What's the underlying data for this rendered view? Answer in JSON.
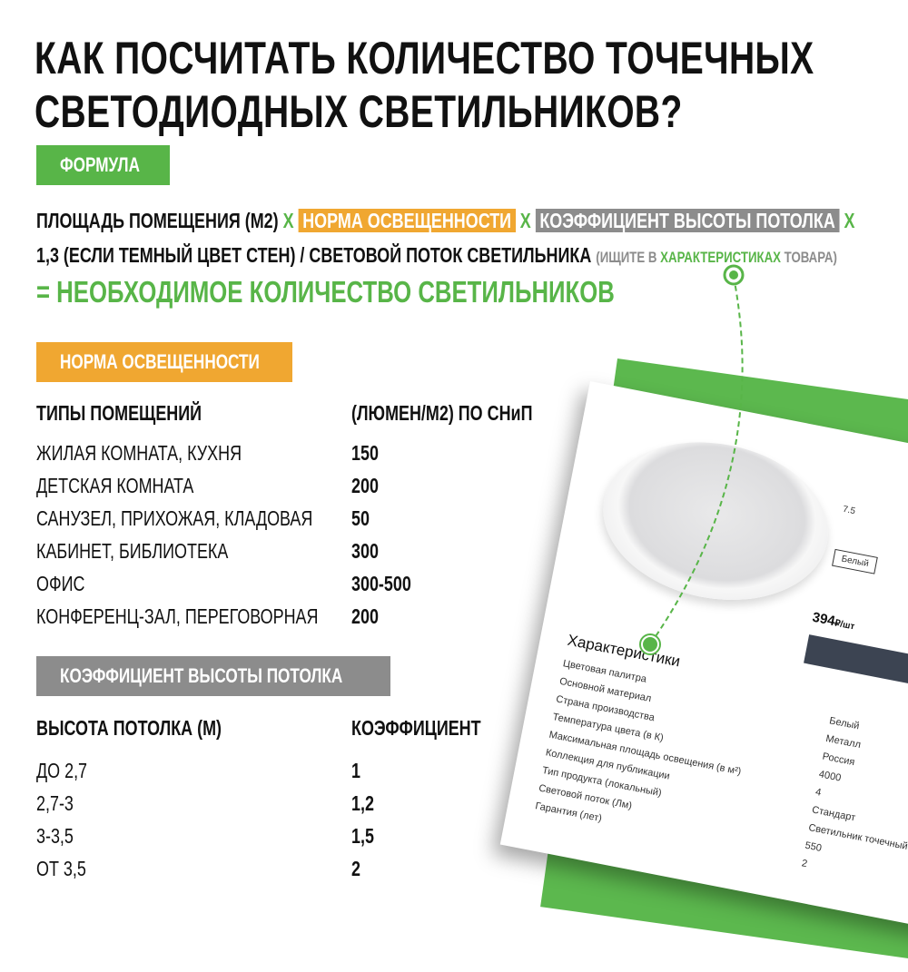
{
  "title": {
    "line1": "КАК ПОСЧИТАТЬ КОЛИЧЕСТВО ТОЧЕЧНЫХ",
    "line2": "СВЕТОДИОДНЫХ СВЕТИЛЬНИКОВ?"
  },
  "colors": {
    "green": "#58b548",
    "orange": "#f0a731",
    "gray": "#8c8c8c"
  },
  "formula": {
    "badge": "ФОРМУЛА",
    "part1": "ПЛОЩАДЬ ПОМЕЩЕНИЯ (М2)",
    "x": "X",
    "part2": "НОРМА ОСВЕЩЕННОСТИ",
    "part3": "КОЭФФИЦИЕНТ ВЫСОТЫ ПОТОЛКА",
    "part4": "1,3 (ЕСЛИ ТЕМНЫЙ ЦВЕТ СТЕН) / СВЕТОВОЙ ПОТОК СВЕТИЛЬНИКА",
    "hint_a": "(ИЩИТЕ В",
    "hint_b": "ХАРАКТЕРИСТИКАХ",
    "hint_c": "ТОВАРА)",
    "result": "= НЕОБХОДИМОЕ КОЛИЧЕСТВО СВЕТИЛЬНИКОВ"
  },
  "norm": {
    "badge": "НОРМА ОСВЕЩЕННОСТИ",
    "headers": [
      "ТИПЫ ПОМЕЩЕНИЙ",
      "(ЛЮМЕН/М2) ПО СНиП"
    ],
    "rows": [
      [
        "ЖИЛАЯ КОМНАТА, КУХНЯ",
        "150"
      ],
      [
        "ДЕТСКАЯ КОМНАТА",
        "200"
      ],
      [
        "САНУЗЕЛ, ПРИХОЖАЯ, КЛАДОВАЯ",
        "50"
      ],
      [
        "КАБИНЕТ, БИБЛИОТЕКА",
        "300"
      ],
      [
        "ОФИС",
        "300-500"
      ],
      [
        "КОНФЕРЕНЦ-ЗАЛ, ПЕРЕГОВОРНАЯ",
        "200"
      ]
    ]
  },
  "coef": {
    "badge": "КОЭФФИЦИЕНТ ВЫСОТЫ ПОТОЛКА",
    "headers": [
      "ВЫСОТА ПОТОЛКА (М)",
      "КОЭФФИЦИЕНТ"
    ],
    "rows": [
      [
        "ДО 2,7",
        "1"
      ],
      [
        "2,7-3",
        "1,2"
      ],
      [
        "3-3,5",
        "1,5"
      ],
      [
        "ОТ 3,5",
        "2"
      ]
    ]
  },
  "product": {
    "price": "394",
    "currency": "₽/шт",
    "color_option": "Белый",
    "diameter_option": "7.5",
    "specs_title": "Характеристики",
    "specs": [
      [
        "Цветовая палитра",
        "Белый"
      ],
      [
        "Основной материал",
        "Металл"
      ],
      [
        "Страна производства",
        "Россия"
      ],
      [
        "Температура цвета (в К)",
        "4000"
      ],
      [
        "Максимальная площадь освещения (в м²)",
        "4"
      ],
      [
        "Коллекция для публикации",
        "Стандарт"
      ],
      [
        "Тип продукта (локальный)",
        "Светильник точечный"
      ],
      [
        "Световой поток (Лм)",
        "550"
      ],
      [
        "Гарантия (лет)",
        "2"
      ]
    ]
  }
}
